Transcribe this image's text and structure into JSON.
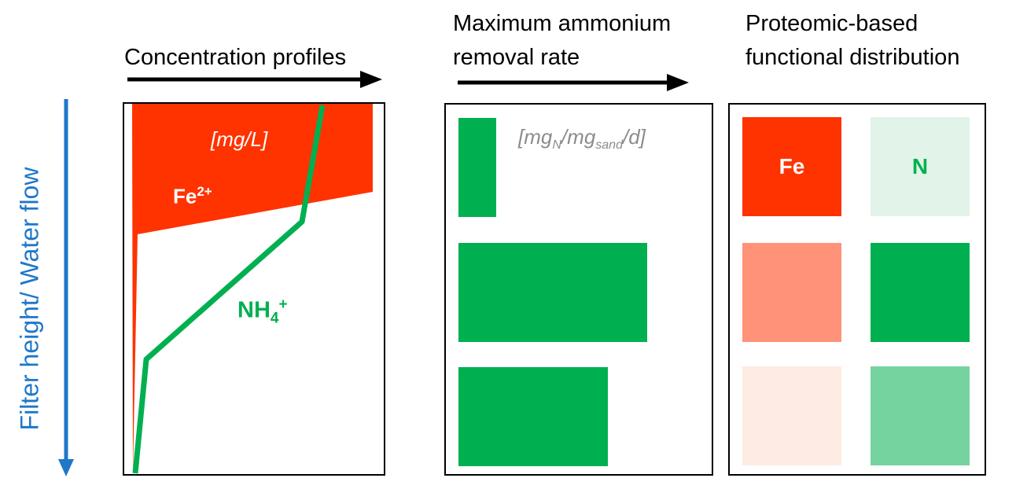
{
  "axis": {
    "label": "Filter height/ Water flow",
    "color": "#1f77c8"
  },
  "panels": {
    "concentration": {
      "heading": "Concentration profiles",
      "unit": "[mg/L]",
      "fe_label": "Fe",
      "fe_superscript": "2+",
      "nh4_label": "NH",
      "nh4_subscript": "4",
      "nh4_superscript": "+"
    },
    "removal": {
      "heading_line1": "Maximum ammonium",
      "heading_line2": "removal rate",
      "unit_open": "[",
      "unit_mg": "mg",
      "unit_sub_n": "N",
      "unit_slash1": "/",
      "unit_mg2": "mg",
      "unit_sub_sand": "sand",
      "unit_rest": "/d]",
      "bar_values": [
        0.2,
        1.0,
        0.79
      ]
    },
    "proteomic": {
      "heading_line1": "Proteomic-based",
      "heading_line2": "functional distribution",
      "fe_label": "Fe",
      "n_label": "N"
    }
  },
  "colors": {
    "iron": "#ff3300",
    "iron_medium": "#ff9278",
    "iron_light": "#fdebe4",
    "nitrogen": "#00b050",
    "nitrogen_medium": "#75d39f",
    "nitrogen_light": "#e2f3e9",
    "unit_gray": "#8c8c8c"
  }
}
